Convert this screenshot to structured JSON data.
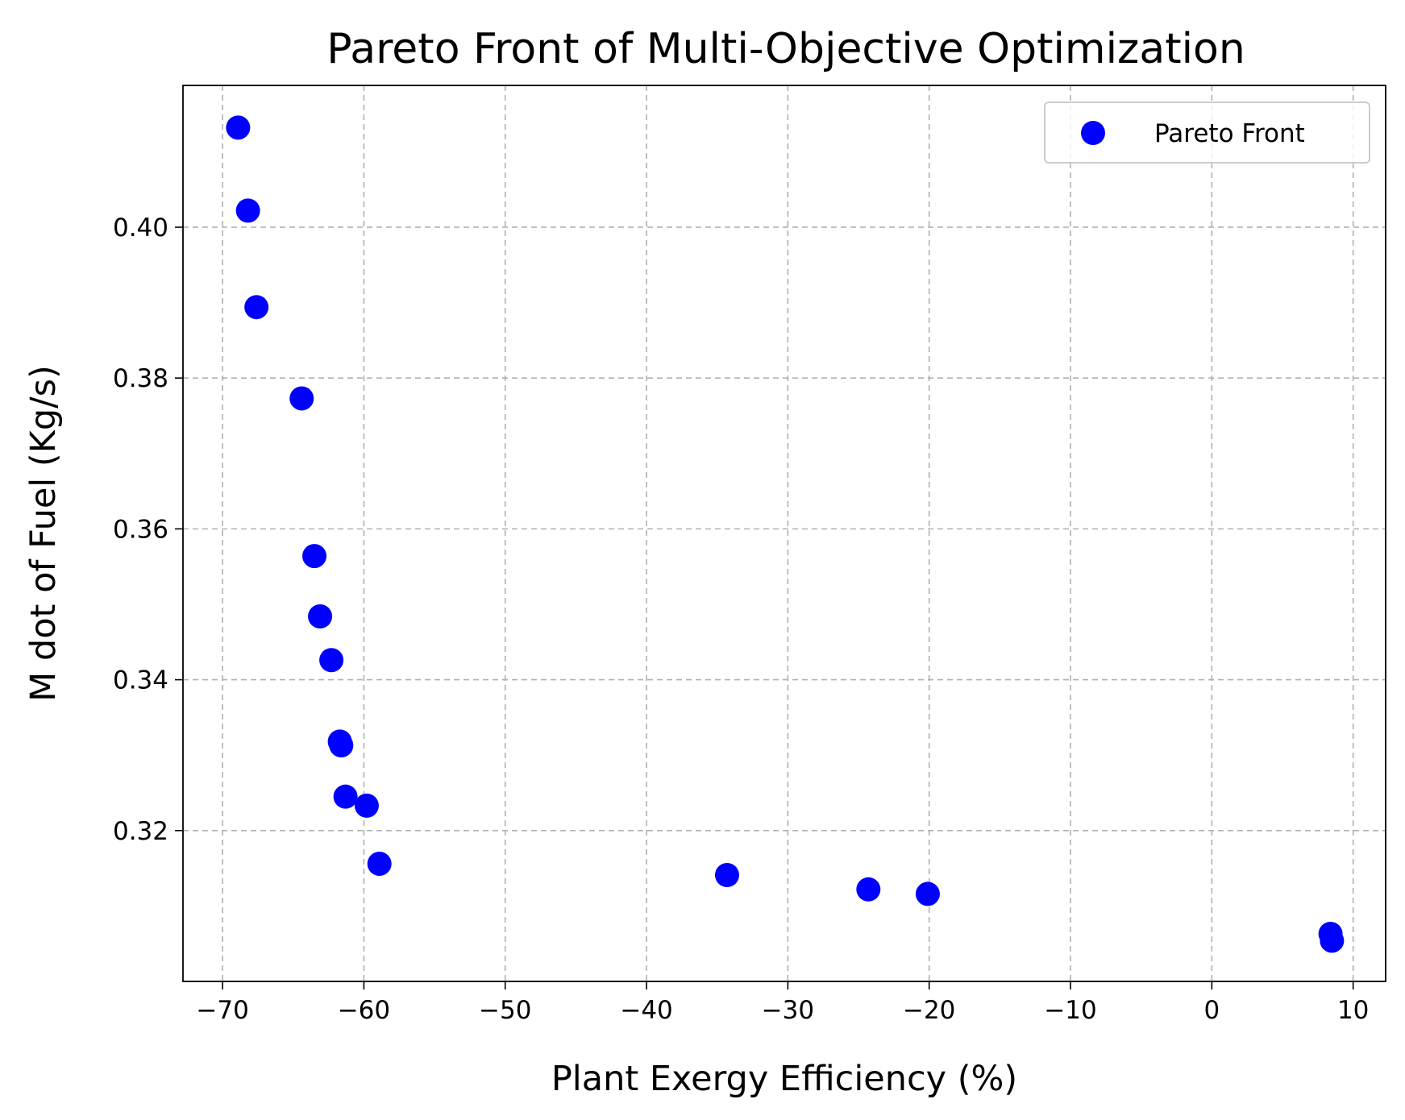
{
  "chart_data": {
    "type": "scatter",
    "title": "Pareto Front of Multi-Objective Optimization",
    "xlabel": "Plant Exergy Efficiency (%)",
    "ylabel": "M dot of Fuel (Kg/s)",
    "xlim": [
      -72.8,
      12.3
    ],
    "ylim": [
      0.3,
      0.4188
    ],
    "x_ticks": [
      -70,
      -60,
      -50,
      -40,
      -30,
      -20,
      -10,
      0,
      10
    ],
    "x_tick_labels": [
      "−70",
      "−60",
      "−50",
      "−40",
      "−30",
      "−20",
      "−10",
      "0",
      "10"
    ],
    "y_ticks": [
      0.32,
      0.34,
      0.36,
      0.38,
      0.4
    ],
    "y_tick_labels": [
      "0.32",
      "0.34",
      "0.36",
      "0.38",
      "0.40"
    ],
    "grid": true,
    "legend": {
      "position": "top-right",
      "entries": [
        "Pareto Front"
      ]
    },
    "series": [
      {
        "name": "Pareto Front",
        "color": "#0000ff",
        "marker": "circle",
        "points": [
          {
            "x": -68.9,
            "y": 0.4132
          },
          {
            "x": -68.2,
            "y": 0.4022
          },
          {
            "x": -67.6,
            "y": 0.3894
          },
          {
            "x": -64.4,
            "y": 0.3773
          },
          {
            "x": -63.5,
            "y": 0.3564
          },
          {
            "x": -63.1,
            "y": 0.3484
          },
          {
            "x": -62.3,
            "y": 0.3426
          },
          {
            "x": -61.7,
            "y": 0.3318
          },
          {
            "x": -61.6,
            "y": 0.3313
          },
          {
            "x": -61.3,
            "y": 0.3245
          },
          {
            "x": -59.8,
            "y": 0.3233
          },
          {
            "x": -58.9,
            "y": 0.3156
          },
          {
            "x": -34.3,
            "y": 0.3141
          },
          {
            "x": -24.3,
            "y": 0.3122
          },
          {
            "x": -20.1,
            "y": 0.3116
          },
          {
            "x": 8.4,
            "y": 0.3063
          },
          {
            "x": 8.5,
            "y": 0.3054
          }
        ]
      }
    ]
  }
}
